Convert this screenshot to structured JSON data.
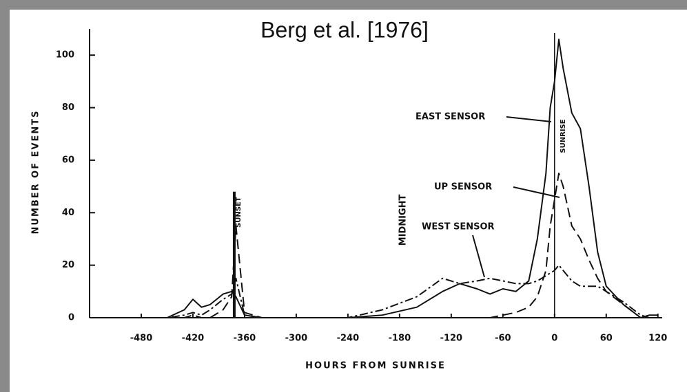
{
  "chart_data": {
    "type": "line",
    "title": "Berg et al. [1976]",
    "xlabel": "HOURS FROM SUNRISE",
    "ylabel": "NUMBER OF EVENTS",
    "xlim": [
      -540,
      125
    ],
    "ylim": [
      0,
      110
    ],
    "xticks": [
      -480,
      -420,
      -360,
      -300,
      -240,
      -180,
      -120,
      -60,
      0,
      60,
      120
    ],
    "yticks": [
      0,
      20,
      40,
      60,
      80,
      100
    ],
    "x": [
      -500,
      -450,
      -430,
      -420,
      -410,
      -400,
      -385,
      -375,
      -370,
      -360,
      -340,
      -300,
      -240,
      -200,
      -160,
      -130,
      -110,
      -90,
      -75,
      -60,
      -45,
      -30,
      -20,
      -10,
      -5,
      0,
      5,
      10,
      20,
      30,
      40,
      50,
      60,
      80,
      100,
      110,
      120
    ],
    "series": [
      {
        "name": "EAST SENSOR",
        "color": "#111111",
        "style": "solid",
        "values": [
          0,
          0,
          3,
          7,
          4,
          5,
          9,
          10,
          8,
          1,
          0,
          0,
          0,
          1,
          4,
          10,
          13,
          11,
          9,
          11,
          10,
          14,
          30,
          55,
          80,
          90,
          106,
          95,
          78,
          72,
          50,
          25,
          12,
          5,
          0,
          1,
          1
        ]
      },
      {
        "name": "UP SENSOR",
        "color": "#111111",
        "style": "dashed",
        "values": [
          0,
          0,
          0,
          1,
          0,
          0,
          3,
          8,
          35,
          2,
          0,
          0,
          0,
          0,
          0,
          0,
          0,
          0,
          0,
          1,
          2,
          4,
          8,
          18,
          35,
          45,
          55,
          50,
          35,
          30,
          22,
          15,
          10,
          5,
          0,
          0,
          0
        ]
      },
      {
        "name": "WEST SENSOR",
        "color": "#111111",
        "style": "dashdot",
        "values": [
          0,
          0,
          1,
          2,
          1,
          3,
          7,
          9,
          15,
          1,
          0,
          0,
          0,
          3,
          8,
          15,
          13,
          14,
          15,
          14,
          13,
          13,
          14,
          16,
          17,
          18,
          20,
          18,
          14,
          12,
          12,
          12,
          10,
          6,
          1,
          0,
          0
        ]
      }
    ],
    "markers": [
      {
        "text": "SUNSET",
        "x": -372
      },
      {
        "text": "SUNRISE",
        "x": 0
      }
    ],
    "midnight": "MIDNIGHT"
  }
}
